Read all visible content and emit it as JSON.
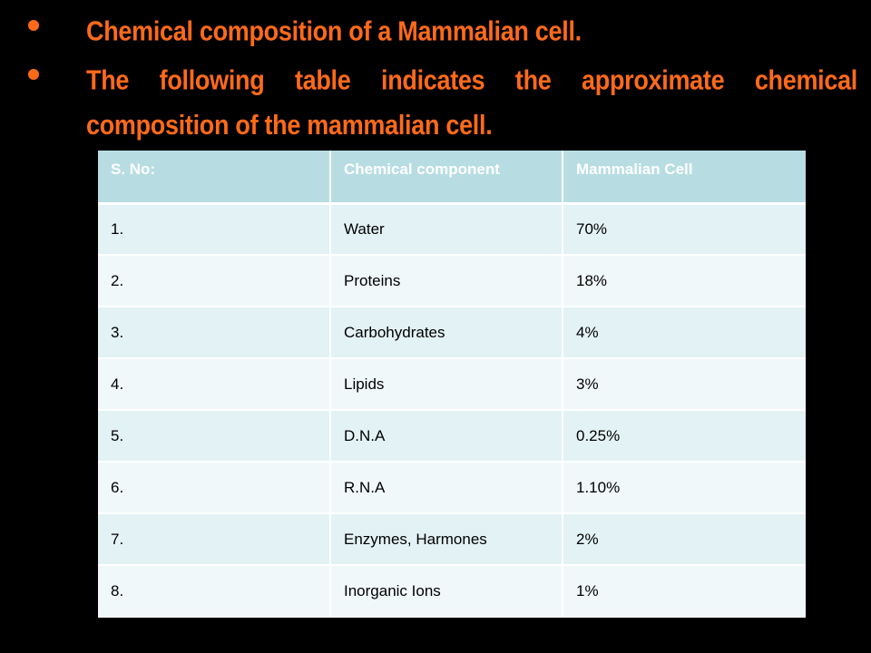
{
  "bullets": [
    "Chemical composition of  a Mammalian cell.",
    "The following table indicates the approximate chemical composition of the mammalian cell."
  ],
  "table": {
    "headers": [
      "S. No:",
      "Chemical component",
      "Mammalian Cell"
    ],
    "rows": [
      [
        "1.",
        "Water",
        "70%"
      ],
      [
        "2.",
        "Proteins",
        "18%"
      ],
      [
        "3.",
        "Carbohydrates",
        "4%"
      ],
      [
        "4.",
        "Lipids",
        "3%"
      ],
      [
        "5.",
        "D.N.A",
        "0.25%"
      ],
      [
        "6.",
        "R.N.A",
        "1.10%"
      ],
      [
        "7.",
        "Enzymes, Harmones",
        "2%"
      ],
      [
        "8.",
        "Inorganic Ions",
        "1%"
      ]
    ]
  },
  "colors": {
    "background": "#000000",
    "bullet_text": "#ff6a1a",
    "header_bg": "#b7dde2",
    "row_odd_bg": "#e3f2f4",
    "row_even_bg": "#f1f8fa"
  }
}
